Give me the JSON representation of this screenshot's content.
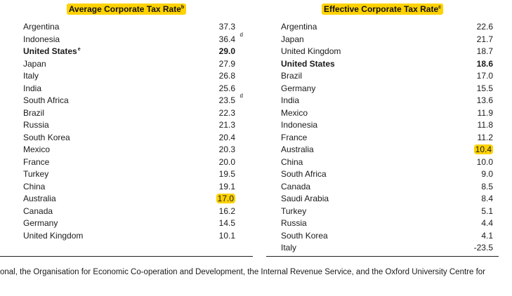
{
  "left_table": {
    "title": "Average Corporate Tax Rate",
    "title_note": "b",
    "rows": [
      {
        "country": "Argentina",
        "value": "37.3",
        "note": "",
        "country_note": "",
        "bold": false,
        "highlight": false
      },
      {
        "country": "Indonesia",
        "value": "36.4",
        "note": "d",
        "country_note": "",
        "bold": false,
        "highlight": false
      },
      {
        "country": "United States",
        "value": "29.0",
        "note": "",
        "country_note": "e",
        "bold": true,
        "highlight": false
      },
      {
        "country": "Japan",
        "value": "27.9",
        "note": "",
        "country_note": "",
        "bold": false,
        "highlight": false
      },
      {
        "country": "Italy",
        "value": "26.8",
        "note": "",
        "country_note": "",
        "bold": false,
        "highlight": false
      },
      {
        "country": "India",
        "value": "25.6",
        "note": "",
        "country_note": "",
        "bold": false,
        "highlight": false
      },
      {
        "country": "South Africa",
        "value": "23.5",
        "note": "d",
        "country_note": "",
        "bold": false,
        "highlight": false
      },
      {
        "country": "Brazil",
        "value": "22.3",
        "note": "",
        "country_note": "",
        "bold": false,
        "highlight": false
      },
      {
        "country": "Russia",
        "value": "21.3",
        "note": "",
        "country_note": "",
        "bold": false,
        "highlight": false
      },
      {
        "country": "South Korea",
        "value": "20.4",
        "note": "",
        "country_note": "",
        "bold": false,
        "highlight": false
      },
      {
        "country": "Mexico",
        "value": "20.3",
        "note": "",
        "country_note": "",
        "bold": false,
        "highlight": false
      },
      {
        "country": "France",
        "value": "20.0",
        "note": "",
        "country_note": "",
        "bold": false,
        "highlight": false
      },
      {
        "country": "Turkey",
        "value": "19.5",
        "note": "",
        "country_note": "",
        "bold": false,
        "highlight": false
      },
      {
        "country": "China",
        "value": "19.1",
        "note": "",
        "country_note": "",
        "bold": false,
        "highlight": false
      },
      {
        "country": "Australia",
        "value": "17.0",
        "note": "",
        "country_note": "",
        "bold": false,
        "highlight": true
      },
      {
        "country": "Canada",
        "value": "16.2",
        "note": "",
        "country_note": "",
        "bold": false,
        "highlight": false
      },
      {
        "country": "Germany",
        "value": "14.5",
        "note": "",
        "country_note": "",
        "bold": false,
        "highlight": false
      },
      {
        "country": "United Kingdom",
        "value": "10.1",
        "note": "",
        "country_note": "",
        "bold": false,
        "highlight": false
      }
    ]
  },
  "right_table": {
    "title": "Effective Corporate Tax Rate",
    "title_note": "c",
    "rows": [
      {
        "country": "Argentina",
        "value": "22.6",
        "bold": false,
        "highlight": false
      },
      {
        "country": "Japan",
        "value": "21.7",
        "bold": false,
        "highlight": false
      },
      {
        "country": "United Kingdom",
        "value": "18.7",
        "bold": false,
        "highlight": false
      },
      {
        "country": "United States",
        "value": "18.6",
        "bold": true,
        "highlight": false
      },
      {
        "country": "Brazil",
        "value": "17.0",
        "bold": false,
        "highlight": false
      },
      {
        "country": "Germany",
        "value": "15.5",
        "bold": false,
        "highlight": false
      },
      {
        "country": "India",
        "value": "13.6",
        "bold": false,
        "highlight": false
      },
      {
        "country": "Mexico",
        "value": "11.9",
        "bold": false,
        "highlight": false
      },
      {
        "country": "Indonesia",
        "value": "11.8",
        "bold": false,
        "highlight": false
      },
      {
        "country": "France",
        "value": "11.2",
        "bold": false,
        "highlight": false
      },
      {
        "country": "Australia",
        "value": "10.4",
        "bold": false,
        "highlight": true
      },
      {
        "country": "China",
        "value": "10.0",
        "bold": false,
        "highlight": false
      },
      {
        "country": "South Africa",
        "value": "9.0",
        "bold": false,
        "highlight": false
      },
      {
        "country": "Canada",
        "value": "8.5",
        "bold": false,
        "highlight": false
      },
      {
        "country": "Saudi Arabia",
        "value": "8.4",
        "bold": false,
        "highlight": false
      },
      {
        "country": "Turkey",
        "value": "5.1",
        "bold": false,
        "highlight": false
      },
      {
        "country": "Russia",
        "value": "4.4",
        "bold": false,
        "highlight": false
      },
      {
        "country": "South Korea",
        "value": "4.1",
        "bold": false,
        "highlight": false
      },
      {
        "country": "Italy",
        "value": "-23.5",
        "bold": false,
        "highlight": false
      }
    ]
  },
  "footer": {
    "text": "onal, the Organisation for Economic Co-operation and Development, the Internal Revenue Service, and the Oxford University Centre for"
  },
  "colors": {
    "highlight": "#ffd200"
  }
}
